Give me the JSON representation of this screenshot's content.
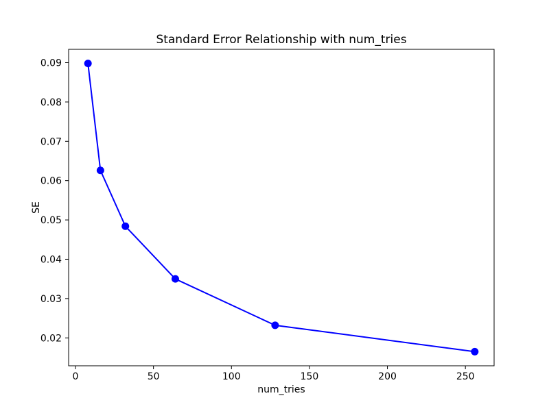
{
  "chart_data": {
    "type": "line",
    "title": "Standard Error Relationship with num_tries",
    "xlabel": "num_tries",
    "ylabel": "SE",
    "x": [
      8,
      16,
      32,
      64,
      128,
      256
    ],
    "y": [
      0.0898,
      0.0626,
      0.0484,
      0.035,
      0.0232,
      0.0165
    ],
    "xlim": [
      -4.4,
      268.4
    ],
    "ylim": [
      0.0129,
      0.0934
    ],
    "xticks": {
      "values": [
        0,
        50,
        100,
        150,
        200,
        250
      ],
      "labels": [
        "0",
        "50",
        "100",
        "150",
        "200",
        "250"
      ]
    },
    "yticks": {
      "values": [
        0.02,
        0.03,
        0.04,
        0.05,
        0.06,
        0.07,
        0.08,
        0.09
      ],
      "labels": [
        "0.02",
        "0.03",
        "0.04",
        "0.05",
        "0.06",
        "0.07",
        "0.08",
        "0.09"
      ]
    },
    "grid": false,
    "legend": false,
    "line_color": "#0000ff",
    "marker": "circle",
    "marker_color": "#0000ff",
    "axis_color": "#000000",
    "background_color": "#ffffff"
  }
}
